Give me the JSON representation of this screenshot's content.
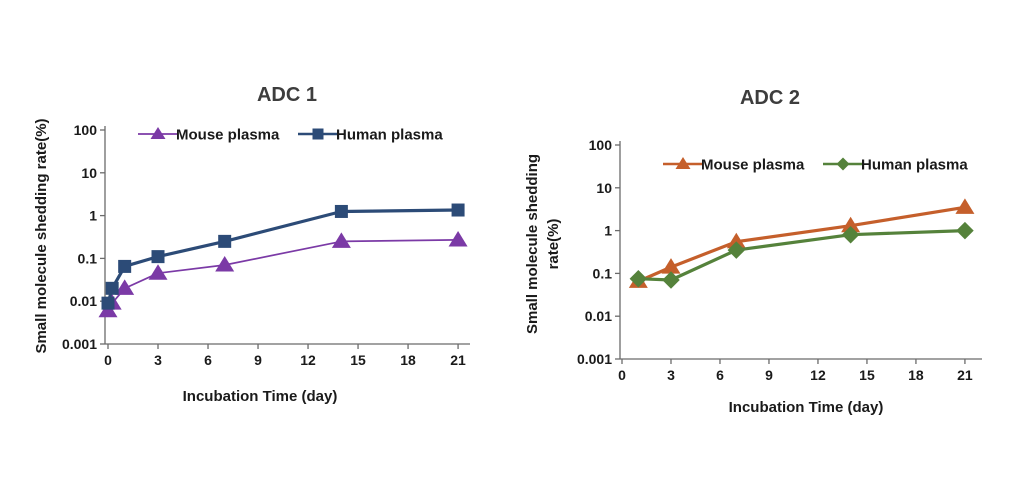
{
  "figure": {
    "background": "#ffffff",
    "title_color": "#3d3d3d",
    "text_color": "#1a1a1a",
    "axis_color": "#6b6b6b"
  },
  "chart_data": [
    {
      "type": "line",
      "id": "adc1",
      "title": "ADC 1",
      "xlabel": "Incubation Time (day)",
      "ylabel": "Small molecule shedding rate(%)",
      "ylabel_lines": [
        "Small molecule shedding rate(%)"
      ],
      "y_scale": "log",
      "xlim": [
        0,
        21.8
      ],
      "ylim": [
        0.001,
        100
      ],
      "x_ticks": [
        0,
        3,
        6,
        9,
        12,
        15,
        18,
        21
      ],
      "y_tick_labels": [
        "100",
        "10",
        "1",
        "0.1",
        "0.01",
        "0.001"
      ],
      "grid": false,
      "legend_position": "top-inside",
      "series": [
        {
          "name": "Mouse plasma",
          "color": "#7B3AA6",
          "marker": "triangle",
          "line_width": 1.7,
          "points": [
            [
              0,
              0.006
            ],
            [
              0.25,
              0.009
            ],
            [
              1,
              0.02
            ],
            [
              3,
              0.045
            ],
            [
              7,
              0.07
            ],
            [
              14,
              0.25
            ],
            [
              21,
              0.27
            ]
          ]
        },
        {
          "name": "Human plasma",
          "color": "#2C4B77",
          "marker": "square",
          "line_width": 3.2,
          "points": [
            [
              0,
              0.009
            ],
            [
              0.25,
              0.02
            ],
            [
              1,
              0.065
            ],
            [
              3,
              0.11
            ],
            [
              7,
              0.25
            ],
            [
              14,
              1.25
            ],
            [
              21,
              1.35
            ]
          ]
        }
      ]
    },
    {
      "type": "line",
      "id": "adc2",
      "title": "ADC 2",
      "xlabel": "Incubation Time (day)",
      "ylabel": "Small molecule shedding rate(%)",
      "ylabel_lines": [
        "Small molecule shedding",
        "rate(%)"
      ],
      "y_scale": "log",
      "xlim": [
        0,
        21.8
      ],
      "ylim": [
        0.001,
        100
      ],
      "x_ticks": [
        0,
        3,
        6,
        9,
        12,
        15,
        18,
        21
      ],
      "y_tick_labels": [
        "100",
        "10",
        "1",
        "0.1",
        "0.01",
        "0.001"
      ],
      "grid": false,
      "legend_position": "top-inside",
      "series": [
        {
          "name": "Mouse plasma",
          "color": "#C55F2B",
          "marker": "triangle",
          "line_width": 3.2,
          "points": [
            [
              1,
              0.065
            ],
            [
              3,
              0.14
            ],
            [
              7,
              0.55
            ],
            [
              14,
              1.3
            ],
            [
              21,
              3.5
            ]
          ]
        },
        {
          "name": "Human plasma",
          "color": "#55823B",
          "marker": "diamond",
          "line_width": 3.2,
          "points": [
            [
              1,
              0.075
            ],
            [
              3,
              0.07
            ],
            [
              7,
              0.35
            ],
            [
              14,
              0.8
            ],
            [
              21,
              1.0
            ]
          ]
        }
      ]
    }
  ]
}
